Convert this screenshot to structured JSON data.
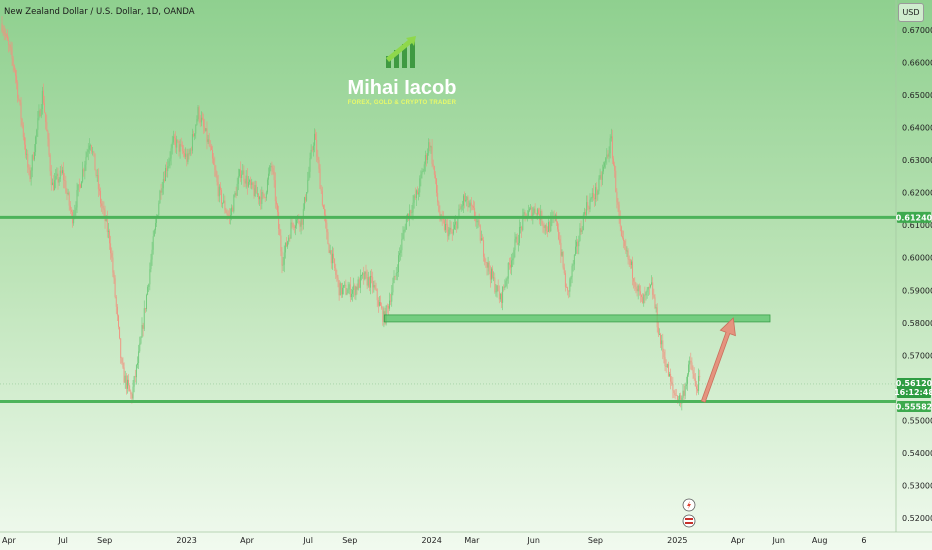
{
  "header": {
    "title": "New Zealand Dollar / U.S. Dollar, 1D, OANDA",
    "currency_label": "USD"
  },
  "watermark": {
    "brand": "Mihai Iacob",
    "tagline": "FOREX, GOLD & CRYPTO TRADER"
  },
  "colors": {
    "up": "#6fc97a",
    "down": "#f0927f",
    "level_line": "#4cb35a",
    "label_green": "#3daa4e",
    "price_label": "#2e9c42",
    "arrow": "#e5937e"
  },
  "chart_data": {
    "type": "candlestick",
    "title": "New Zealand Dollar / U.S. Dollar, 1D, OANDA",
    "y_range": [
      0.515,
      0.6745
    ],
    "y_ticks": [
      "0.67000",
      "0.66000",
      "0.65000",
      "0.64000",
      "0.63000",
      "0.62000",
      "0.61000",
      "0.60000",
      "0.59000",
      "0.58000",
      "0.57000",
      "0.55000",
      "0.54000",
      "0.53000",
      "0.52000"
    ],
    "x_ticks": [
      "Apr",
      "Jul",
      "Sep",
      "2023",
      "Apr",
      "Jul",
      "Sep",
      "2024",
      "Mar",
      "Jun",
      "Sep",
      "2025",
      "Apr",
      "Jun",
      "Aug",
      "6"
    ],
    "price_path": [
      [
        "2022-04-01",
        0.672
      ],
      [
        "2022-04-20",
        0.658
      ],
      [
        "2022-05-12",
        0.624
      ],
      [
        "2022-06-01",
        0.651
      ],
      [
        "2022-06-15",
        0.622
      ],
      [
        "2022-07-01",
        0.626
      ],
      [
        "2022-07-15",
        0.612
      ],
      [
        "2022-08-11",
        0.637
      ],
      [
        "2022-08-26",
        0.618
      ],
      [
        "2022-09-10",
        0.605
      ],
      [
        "2022-09-28",
        0.565
      ],
      [
        "2022-10-12",
        0.557
      ],
      [
        "2022-10-24",
        0.571
      ],
      [
        "2022-11-10",
        0.599
      ],
      [
        "2022-11-25",
        0.622
      ],
      [
        "2022-12-15",
        0.636
      ],
      [
        "2023-01-05",
        0.63
      ],
      [
        "2023-01-20",
        0.645
      ],
      [
        "2023-02-06",
        0.634
      ],
      [
        "2023-02-20",
        0.62
      ],
      [
        "2023-03-08",
        0.612
      ],
      [
        "2023-03-25",
        0.627
      ],
      [
        "2023-04-10",
        0.621
      ],
      [
        "2023-04-28",
        0.618
      ],
      [
        "2023-05-10",
        0.629
      ],
      [
        "2023-05-26",
        0.599
      ],
      [
        "2023-06-10",
        0.611
      ],
      [
        "2023-06-25",
        0.612
      ],
      [
        "2023-07-13",
        0.638
      ],
      [
        "2023-08-01",
        0.606
      ],
      [
        "2023-08-20",
        0.59
      ],
      [
        "2023-09-10",
        0.59
      ],
      [
        "2023-09-25",
        0.594
      ],
      [
        "2023-10-08",
        0.592
      ],
      [
        "2023-10-26",
        0.581
      ],
      [
        "2023-11-10",
        0.593
      ],
      [
        "2023-11-28",
        0.612
      ],
      [
        "2023-12-15",
        0.62
      ],
      [
        "2024-01-02",
        0.636
      ],
      [
        "2024-01-18",
        0.611
      ],
      [
        "2024-02-05",
        0.607
      ],
      [
        "2024-02-22",
        0.618
      ],
      [
        "2024-03-10",
        0.613
      ],
      [
        "2024-03-28",
        0.598
      ],
      [
        "2024-04-17",
        0.587
      ],
      [
        "2024-05-06",
        0.602
      ],
      [
        "2024-05-24",
        0.613
      ],
      [
        "2024-06-10",
        0.615
      ],
      [
        "2024-06-25",
        0.609
      ],
      [
        "2024-07-10",
        0.612
      ],
      [
        "2024-07-26",
        0.588
      ],
      [
        "2024-08-05",
        0.599
      ],
      [
        "2024-08-22",
        0.615
      ],
      [
        "2024-09-10",
        0.621
      ],
      [
        "2024-09-30",
        0.636
      ],
      [
        "2024-10-15",
        0.605
      ],
      [
        "2024-10-30",
        0.597
      ],
      [
        "2024-11-15",
        0.586
      ],
      [
        "2024-11-30",
        0.591
      ],
      [
        "2024-12-12",
        0.575
      ],
      [
        "2024-12-31",
        0.559
      ],
      [
        "2025-01-13",
        0.556
      ],
      [
        "2025-01-27",
        0.568
      ],
      [
        "2025-02-03",
        0.56
      ],
      [
        "2025-02-10",
        0.562
      ]
    ],
    "levels": [
      {
        "name": "resistance",
        "price": 0.6124,
        "label": "0.61240"
      },
      {
        "name": "support",
        "price": 0.55582,
        "label": "0.55582"
      }
    ],
    "zone": {
      "price_low": 0.5805,
      "price_high": 0.5815,
      "from": "2023-10-26",
      "to": "2025-05-26"
    },
    "last_price": {
      "value": "0.56120",
      "countdown": "16:12:48",
      "price": 0.5612
    },
    "projection": {
      "from": [
        "2025-02-15",
        0.5558
      ],
      "to": [
        "2025-04-01",
        0.5815
      ]
    },
    "grid": false,
    "legend": "none"
  }
}
